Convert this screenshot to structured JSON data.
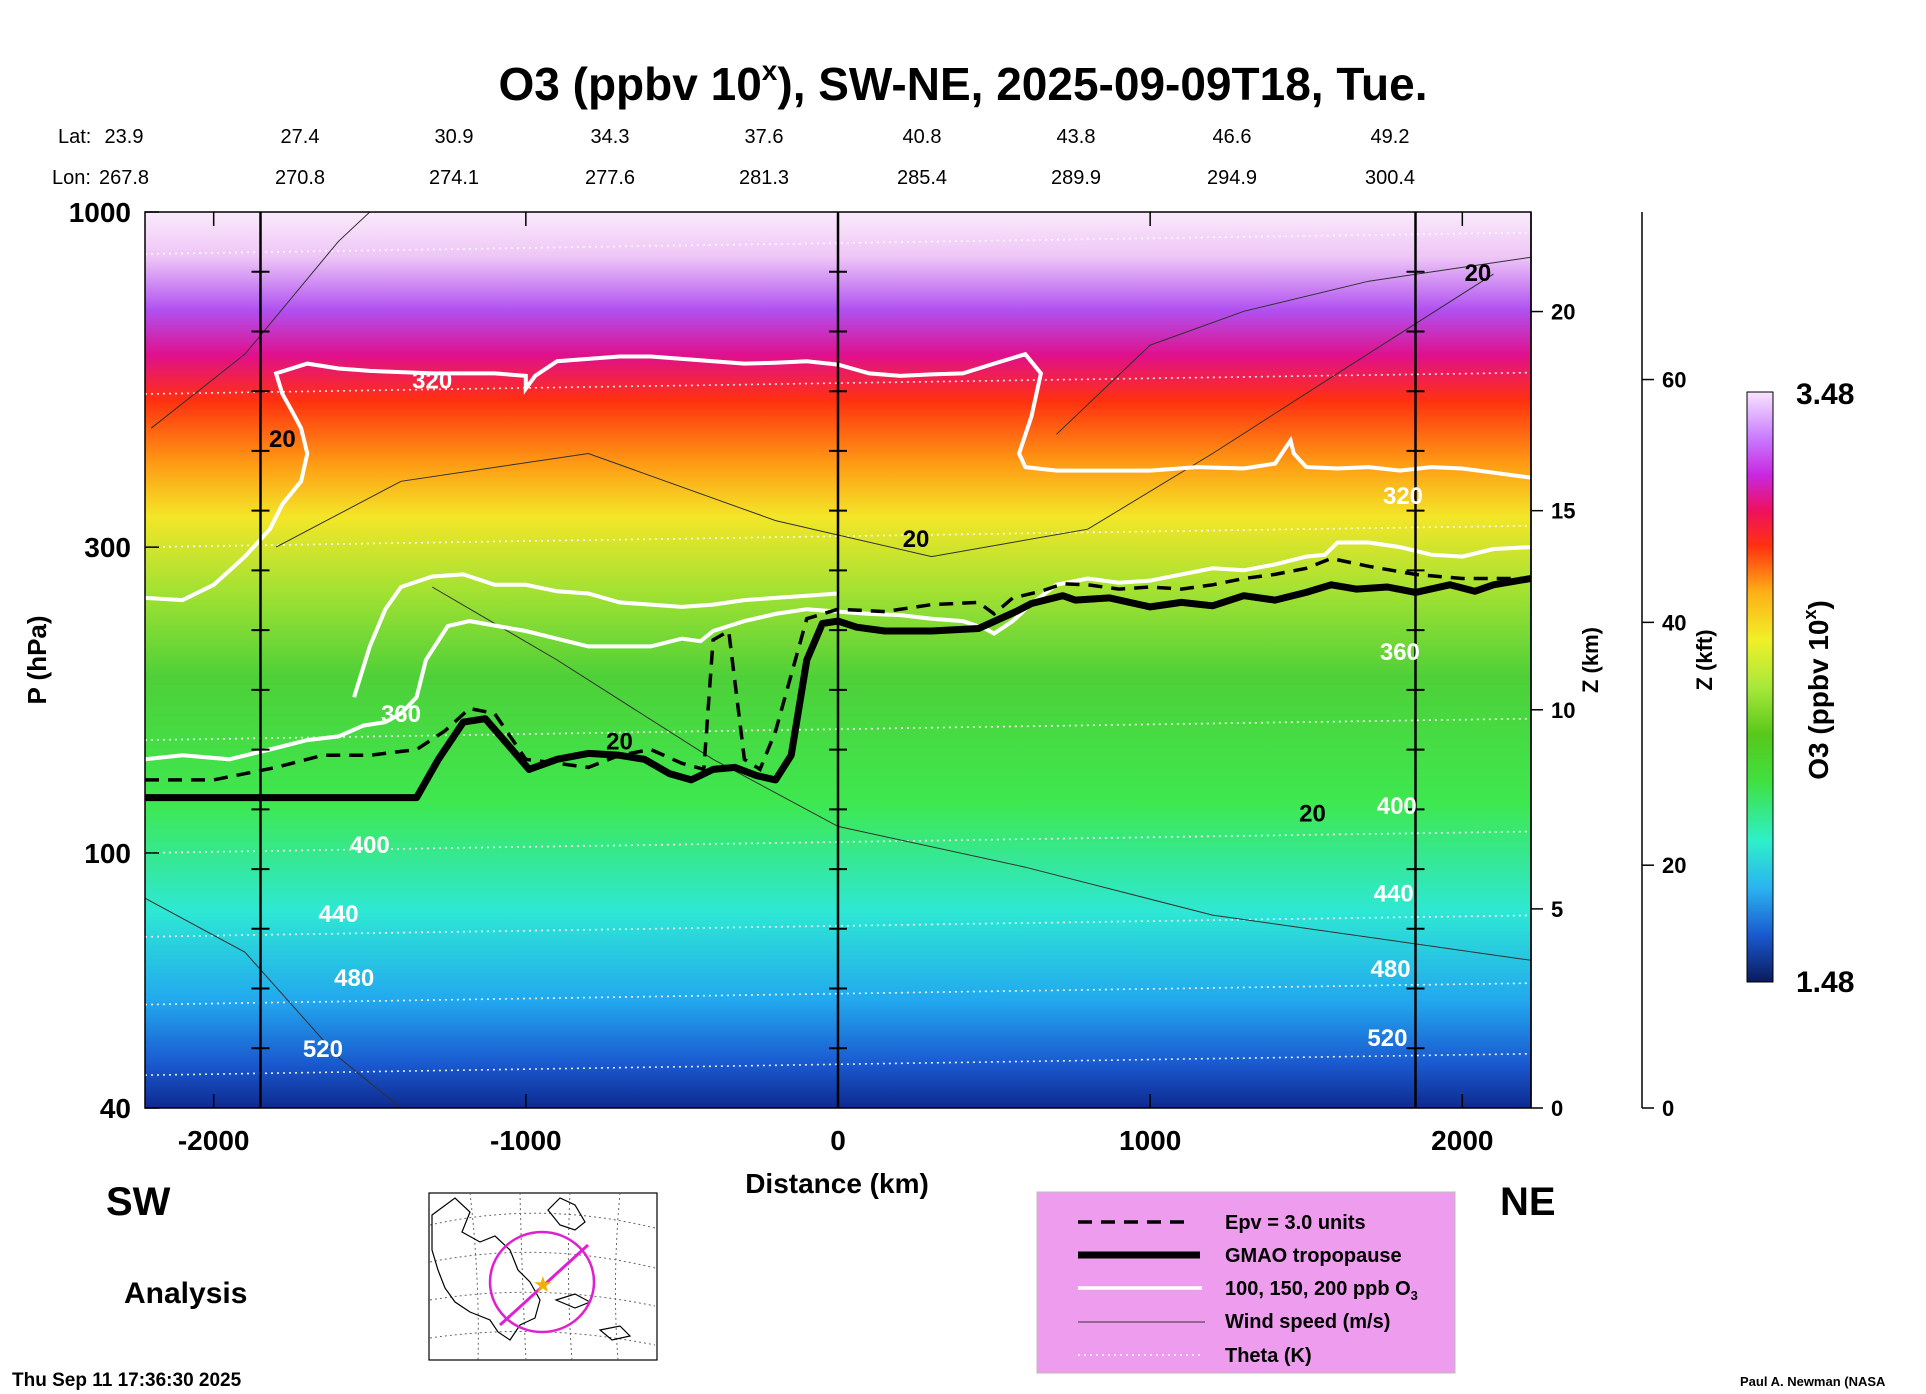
{
  "chart_data": {
    "type": "heatmap",
    "title_main": "O3 (ppbv 10",
    "title_sup": "x",
    "title_rest": "), SW-NE, 2025-09-09T18, Tue.",
    "xlabel": "Distance (km)",
    "ylabel": "P (hPa)",
    "z_km_label": "Z (km)",
    "z_kft_label": "Z (kft)",
    "x_range": [
      -2220,
      2220
    ],
    "p_range": [
      1000,
      40
    ],
    "x_ticks": [
      -2000,
      -1000,
      0,
      1000,
      2000
    ],
    "x_tick_labels": [
      "-2000",
      "-1000",
      "0",
      "1000",
      "2000"
    ],
    "p_ticks": [
      40,
      100,
      300,
      1000
    ],
    "p_tick_labels": [
      "40",
      "100",
      "300",
      "1000"
    ],
    "z_km_ticks": [
      0,
      5,
      10,
      15,
      20
    ],
    "z_km_tick_labels": [
      "0",
      "5",
      "10",
      "15",
      "20"
    ],
    "z_kft_ticks": [
      0,
      20,
      40,
      60
    ],
    "z_kft_tick_labels": [
      "0",
      "20",
      "40",
      "60"
    ],
    "lat_label": "Lat:",
    "lon_label": "Lon:",
    "lat_values": [
      "23.9",
      "27.4",
      "30.9",
      "34.3",
      "37.6",
      "40.8",
      "43.8",
      "46.6",
      "49.2"
    ],
    "lon_values": [
      "267.8",
      "270.8",
      "274.1",
      "277.6",
      "281.3",
      "285.4",
      "289.9",
      "294.9",
      "300.4"
    ],
    "vertical_markers_km": [
      -1850,
      0,
      1850
    ],
    "colorbar": {
      "label_main": "O3 (ppbv 10",
      "label_sup": "x",
      "label_end": ")",
      "max_label": "3.48",
      "min_label": "1.48",
      "colors": [
        "#0a1a5c",
        "#123a8a",
        "#1a5ad0",
        "#1e86e8",
        "#2ab4f0",
        "#2edcec",
        "#2ef0c8",
        "#3cf28c",
        "#40e040",
        "#58c81a",
        "#8ee02a",
        "#c8ee3a",
        "#f0f028",
        "#ffd21a",
        "#ffa014",
        "#ff6a10",
        "#ff2a10",
        "#ee1060",
        "#e018c8",
        "#b43cff",
        "#c878ff",
        "#e4b4ff",
        "#f8e4ff"
      ]
    },
    "tropopause": {
      "name": "GMAO tropopause",
      "x": [
        -2220,
        -1350,
        -1280,
        -1200,
        -1130,
        -1060,
        -990,
        -900,
        -800,
        -700,
        -620,
        -540,
        -470,
        -400,
        -330,
        -260,
        -200,
        -150,
        -100,
        -50,
        0,
        60,
        150,
        300,
        450,
        570,
        620,
        720,
        760,
        870,
        1000,
        1100,
        1200,
        1300,
        1400,
        1500,
        1580,
        1660,
        1760,
        1850,
        1960,
        2040,
        2100,
        2180,
        2220
      ],
      "p": [
        122,
        122,
        140,
        160,
        162,
        148,
        135,
        140,
        143,
        142,
        140,
        133,
        130,
        135,
        136,
        132,
        130,
        142,
        200,
        228,
        230,
        225,
        222,
        222,
        224,
        238,
        245,
        252,
        248,
        250,
        242,
        246,
        243,
        252,
        248,
        255,
        262,
        258,
        260,
        255,
        262,
        256,
        262,
        266,
        268
      ]
    },
    "epv_line": {
      "name": "Epv = 3.0 units",
      "x": [
        -2220,
        -2000,
        -1800,
        -1650,
        -1500,
        -1350,
        -1260,
        -1180,
        -1100,
        -1000,
        -900,
        -800,
        -700,
        -600,
        -500,
        -430,
        -400,
        -350,
        -300,
        -250,
        -200,
        -100,
        0,
        150,
        300,
        450,
        500,
        560,
        650,
        720,
        800,
        900,
        1000,
        1100,
        1200,
        1300,
        1400,
        1500,
        1580,
        1700,
        1850,
        2000,
        2220
      ],
      "p": [
        130,
        130,
        136,
        142,
        142,
        145,
        155,
        168,
        165,
        140,
        138,
        136,
        142,
        145,
        138,
        135,
        215,
        222,
        140,
        135,
        155,
        232,
        240,
        238,
        244,
        246,
        236,
        250,
        256,
        263,
        262,
        258,
        260,
        258,
        262,
        268,
        272,
        278,
        288,
        280,
        272,
        268,
        268
      ]
    },
    "ozone_contours": {
      "name": "100, 150, 200 ppb O3",
      "lines": [
        {
          "x": [
            -2220,
            -2100,
            -1950,
            -1820,
            -1700,
            -1600,
            -1520,
            -1450,
            -1400,
            -1350,
            -1320,
            -1250,
            -1180,
            -1000,
            -800,
            -600,
            -500,
            -440,
            -400,
            -300,
            -200,
            -100,
            0,
            100,
            200,
            300,
            400,
            470,
            500,
            560,
            620,
            700,
            800,
            900,
            1000,
            1100,
            1200,
            1300,
            1400,
            1500,
            1560,
            1600,
            1700,
            1800,
            1900,
            2000,
            2100,
            2220
          ],
          "p": [
            140,
            142,
            140,
            145,
            150,
            152,
            158,
            160,
            165,
            175,
            200,
            226,
            230,
            222,
            210,
            210,
            216,
            214,
            222,
            230,
            236,
            240,
            238,
            236,
            235,
            232,
            230,
            224,
            220,
            230,
            245,
            262,
            268,
            264,
            266,
            272,
            278,
            276,
            282,
            290,
            292,
            305,
            305,
            300,
            292,
            290,
            298,
            300
          ]
        },
        {
          "x": [
            -1550,
            -1500,
            -1450,
            -1400,
            -1300,
            -1200,
            -1100,
            -1000,
            -900,
            -800,
            -700,
            -600,
            -500,
            -400,
            -300,
            -200,
            -100,
            0
          ],
          "p": [
            175,
            210,
            240,
            260,
            270,
            272,
            262,
            262,
            256,
            254,
            246,
            244,
            242,
            244,
            248,
            250,
            252,
            254
          ]
        },
        {
          "x": [
            -2220,
            -2100,
            -2000,
            -1900,
            -1820,
            -1780,
            -1720,
            -1700,
            -1720,
            -1750,
            -1780,
            -1800,
            -1700,
            -1600,
            -1500,
            -1300,
            -1100,
            -1000,
            -1000,
            -970,
            -900,
            -800,
            -700,
            -600,
            -500,
            -400,
            -300,
            -200,
            -100,
            0,
            100,
            200,
            300,
            400,
            500,
            600,
            650,
            620,
            580,
            600,
            700,
            800,
            900,
            1000,
            1150,
            1300,
            1400,
            1450,
            1460,
            1500,
            1600,
            1700,
            1800,
            1900,
            2000,
            2100,
            2220
          ],
          "p": [
            250,
            248,
            262,
            290,
            320,
            350,
            380,
            420,
            460,
            490,
            520,
            560,
            580,
            570,
            565,
            560,
            560,
            555,
            530,
            555,
            585,
            590,
            595,
            595,
            590,
            585,
            580,
            582,
            585,
            578,
            560,
            555,
            558,
            560,
            580,
            600,
            560,
            480,
            420,
            400,
            395,
            395,
            395,
            395,
            400,
            398,
            405,
            440,
            420,
            400,
            398,
            400,
            395,
            400,
            398,
            392,
            385
          ]
        }
      ]
    },
    "wind_label": "20",
    "contour_labels": [
      "20",
      "20",
      "20",
      "20",
      "20"
    ],
    "theta_labels": [
      "520",
      "480",
      "440",
      "400",
      "360",
      "320",
      "520",
      "480",
      "440",
      "400",
      "360",
      "320"
    ],
    "theta_label_points": [
      {
        "x": -1650,
        "p": 48
      },
      {
        "x": -1550,
        "p": 62
      },
      {
        "x": -1600,
        "p": 78
      },
      {
        "x": -1500,
        "p": 100
      },
      {
        "x": -1400,
        "p": 160
      },
      {
        "x": -1300,
        "p": 530
      },
      {
        "x": 1760,
        "p": 50
      },
      {
        "x": 1770,
        "p": 64
      },
      {
        "x": 1780,
        "p": 84
      },
      {
        "x": 1790,
        "p": 115
      },
      {
        "x": 1800,
        "p": 200
      },
      {
        "x": 1810,
        "p": 350
      }
    ],
    "legend_entries": [
      "Epv = 3.0 units",
      "GMAO tropopause",
      "100, 150, 200 ppb O",
      "Wind speed (m/s)",
      "Theta (K)"
    ],
    "legend_sub": "3",
    "legend_position": "bottom-right",
    "sw_label": "SW",
    "ne_label": "NE",
    "mode_label": "Analysis",
    "timestamp": "Thu Sep 11 17:36:30 2025",
    "credit": "Paul A. Newman (NASA"
  }
}
